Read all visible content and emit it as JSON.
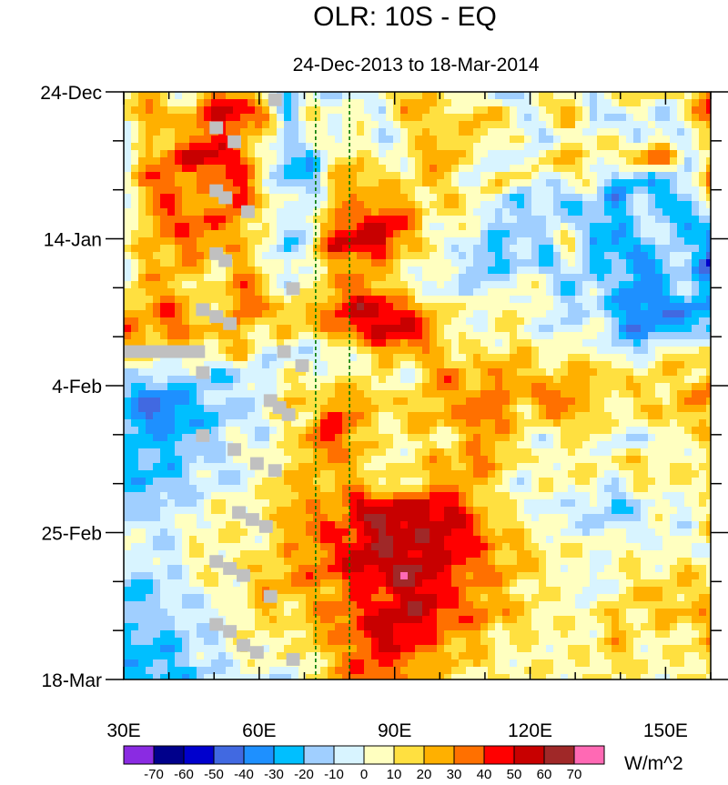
{
  "chart_data": {
    "type": "heatmap",
    "title": "OLR: 10S - EQ",
    "subtitle": "24-Dec-2013 to 18-Mar-2014",
    "xlabel": "",
    "ylabel": "",
    "x_range": [
      30,
      160
    ],
    "x_ticks": [
      {
        "value": 30,
        "label": "30E"
      },
      {
        "value": 60,
        "label": "60E"
      },
      {
        "value": 90,
        "label": "90E"
      },
      {
        "value": 120,
        "label": "120E"
      },
      {
        "value": 150,
        "label": "150E"
      }
    ],
    "y_range_days": [
      0,
      84
    ],
    "y_ticks": [
      {
        "day": 0,
        "label": "24-Dec"
      },
      {
        "day": 21,
        "label": "14-Jan"
      },
      {
        "day": 42,
        "label": "4-Feb"
      },
      {
        "day": 63,
        "label": "25-Feb"
      },
      {
        "day": 84,
        "label": "18-Mar"
      }
    ],
    "reference_lines_lon": [
      72.5,
      80
    ],
    "colorbar": {
      "units": "W/m^2",
      "levels": [
        -70,
        -60,
        -50,
        -40,
        -30,
        -20,
        -10,
        0,
        10,
        20,
        30,
        40,
        50,
        60,
        70
      ],
      "colors": [
        "#8a2be2",
        "#00008b",
        "#0000cd",
        "#4169e1",
        "#1e90ff",
        "#00bfff",
        "#a0cfff",
        "#d8f4ff",
        "#ffffc0",
        "#ffe040",
        "#ffb000",
        "#ff7000",
        "#ff0000",
        "#c80000",
        "#a02828",
        "#ff69b4"
      ]
    },
    "field": {
      "description_ascii": "anomaly field encoded as rows of digits, 0=-70..9=+70",
      "nx": 26,
      "ny": 28,
      "rows": [
        "56457643534566453455465657",
        "57668873555466566457345358",
        "36577654545456565535553545",
        "46788753356456744466557745",
        "57767753366656546545533347",
        "46766855466665654343424336",
        "46777654477875553444334423",
        "56676653588865443436323442",
        "46665654566655533434342341",
        "56655764567654444553432343",
        "66765766678876555544432223",
        "76766656577887545544532333",
        "65555644445666565655544565",
        "44443445555546757656665656",
        "32234446566656676677556567",
        "32233446586566677566655665",
        "33334545776555566545544456",
        "33344455666556676555556555",
        "33344456666556665455545556",
        "34445556668888865544434545",
        "44455556777988876554444546",
        "54455556678888876655555454",
        "44455566778898776655455565",
        "33445566667788766555456656",
        "34444565677888776655565666",
        "33344555667887665555565556",
        "33344555567776665555565556",
        "33334444567766555555555555"
      ]
    },
    "missing_markers": [
      {
        "lon": 62,
        "day": 1,
        "w": 3
      },
      {
        "lon": 49,
        "day": 5,
        "w": 3
      },
      {
        "lon": 53,
        "day": 7,
        "w": 3
      },
      {
        "lon": 49,
        "day": 14,
        "w": 3
      },
      {
        "lon": 51,
        "day": 15,
        "w": 3
      },
      {
        "lon": 56,
        "day": 17,
        "w": 3
      },
      {
        "lon": 49,
        "day": 23,
        "w": 3
      },
      {
        "lon": 51,
        "day": 24,
        "w": 3
      },
      {
        "lon": 66,
        "day": 28,
        "w": 3
      },
      {
        "lon": 46,
        "day": 31,
        "w": 3
      },
      {
        "lon": 49,
        "day": 32,
        "w": 3
      },
      {
        "lon": 52,
        "day": 33,
        "w": 3
      },
      {
        "lon": 30,
        "day": 37,
        "w": 18
      },
      {
        "lon": 64,
        "day": 37,
        "w": 3
      },
      {
        "lon": 68,
        "day": 39,
        "w": 3
      },
      {
        "lon": 46,
        "day": 40,
        "w": 3
      },
      {
        "lon": 61,
        "day": 44,
        "w": 3
      },
      {
        "lon": 63,
        "day": 45,
        "w": 3
      },
      {
        "lon": 65,
        "day": 46,
        "w": 3
      },
      {
        "lon": 46,
        "day": 49,
        "w": 3
      },
      {
        "lon": 53,
        "day": 51,
        "w": 3
      },
      {
        "lon": 58,
        "day": 53,
        "w": 3
      },
      {
        "lon": 62,
        "day": 54,
        "w": 3
      },
      {
        "lon": 54,
        "day": 60,
        "w": 3
      },
      {
        "lon": 57,
        "day": 61,
        "w": 3
      },
      {
        "lon": 60,
        "day": 62,
        "w": 3
      },
      {
        "lon": 49,
        "day": 67,
        "w": 3
      },
      {
        "lon": 52,
        "day": 68,
        "w": 3
      },
      {
        "lon": 55,
        "day": 69,
        "w": 3
      },
      {
        "lon": 61,
        "day": 72,
        "w": 3
      },
      {
        "lon": 49,
        "day": 76,
        "w": 3
      },
      {
        "lon": 52,
        "day": 77,
        "w": 3
      },
      {
        "lon": 55,
        "day": 79,
        "w": 3
      },
      {
        "lon": 58,
        "day": 80,
        "w": 3
      },
      {
        "lon": 66,
        "day": 81,
        "w": 3
      }
    ]
  }
}
